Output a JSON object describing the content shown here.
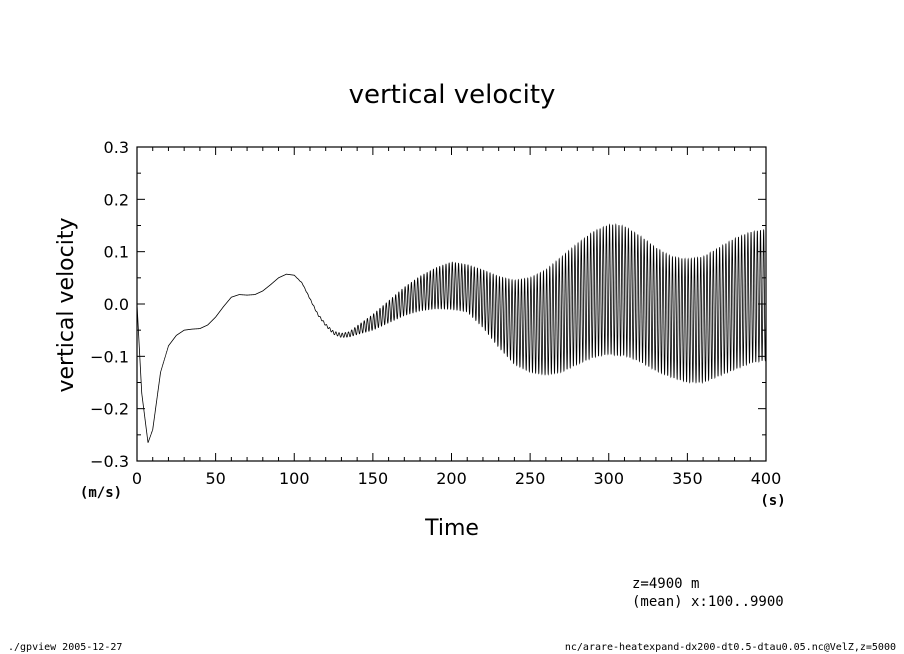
{
  "chart_data": {
    "type": "line",
    "title": "vertical velocity",
    "xlabel": "Time",
    "ylabel": "vertical velocity",
    "x_unit": "(s)",
    "y_unit": "(m/s)",
    "xlim": [
      0,
      400
    ],
    "ylim": [
      -0.3,
      0.3
    ],
    "x_ticks": [
      "0",
      "50",
      "100",
      "150",
      "200",
      "250",
      "300",
      "350",
      "400"
    ],
    "y_ticks": [
      "0.3",
      "0.2",
      "0.1",
      "0.0",
      "−0.1",
      "−0.2",
      "−0.3"
    ],
    "grid": false,
    "legend": "none",
    "series": [
      {
        "mean_curve": {
          "x": [
            0,
            3,
            7,
            10,
            15,
            20,
            25,
            30,
            35,
            40,
            45,
            50,
            55,
            60,
            65,
            70,
            75,
            80,
            85,
            90,
            95,
            100,
            105,
            110,
            115,
            120,
            125,
            130,
            135,
            140,
            150,
            160,
            170,
            180,
            190,
            200,
            210,
            220,
            230,
            240,
            250,
            260,
            270,
            280,
            290,
            300,
            310,
            320,
            330,
            340,
            350,
            360,
            370,
            380,
            390,
            400
          ],
          "y": [
            0.0,
            -0.17,
            -0.265,
            -0.24,
            -0.13,
            -0.08,
            -0.06,
            -0.05,
            -0.048,
            -0.047,
            -0.04,
            -0.025,
            -0.005,
            0.013,
            0.018,
            0.017,
            0.018,
            0.025,
            0.037,
            0.05,
            0.057,
            0.055,
            0.04,
            0.01,
            -0.02,
            -0.04,
            -0.055,
            -0.06,
            -0.058,
            -0.05,
            -0.035,
            -0.015,
            0.005,
            0.02,
            0.03,
            0.035,
            0.03,
            0.01,
            -0.015,
            -0.035,
            -0.04,
            -0.035,
            -0.02,
            0.0,
            0.018,
            0.028,
            0.025,
            0.01,
            -0.01,
            -0.025,
            -0.032,
            -0.03,
            -0.015,
            0.0,
            0.012,
            0.018
          ]
        },
        "oscillation_envelope": {
          "x": [
            0,
            100,
            120,
            135,
            150,
            175,
            200,
            210,
            220,
            240,
            255,
            270,
            290,
            305,
            320,
            340,
            360,
            380,
            400
          ],
          "half_amplitude": [
            0.0,
            0.0,
            0.002,
            0.005,
            0.015,
            0.03,
            0.045,
            0.045,
            0.055,
            0.08,
            0.095,
            0.11,
            0.12,
            0.125,
            0.12,
            0.115,
            0.12,
            0.125,
            0.125
          ]
        }
      }
    ],
    "annotations": {
      "z_level": "z=4900  m",
      "mean_note": "(mean) x:100..9900",
      "footer_left": "./gpview  2005-12-27",
      "footer_right": "nc/arare-heatexpand-dx200-dt0.5-dtau0.05.nc@VelZ,z=5000"
    }
  }
}
